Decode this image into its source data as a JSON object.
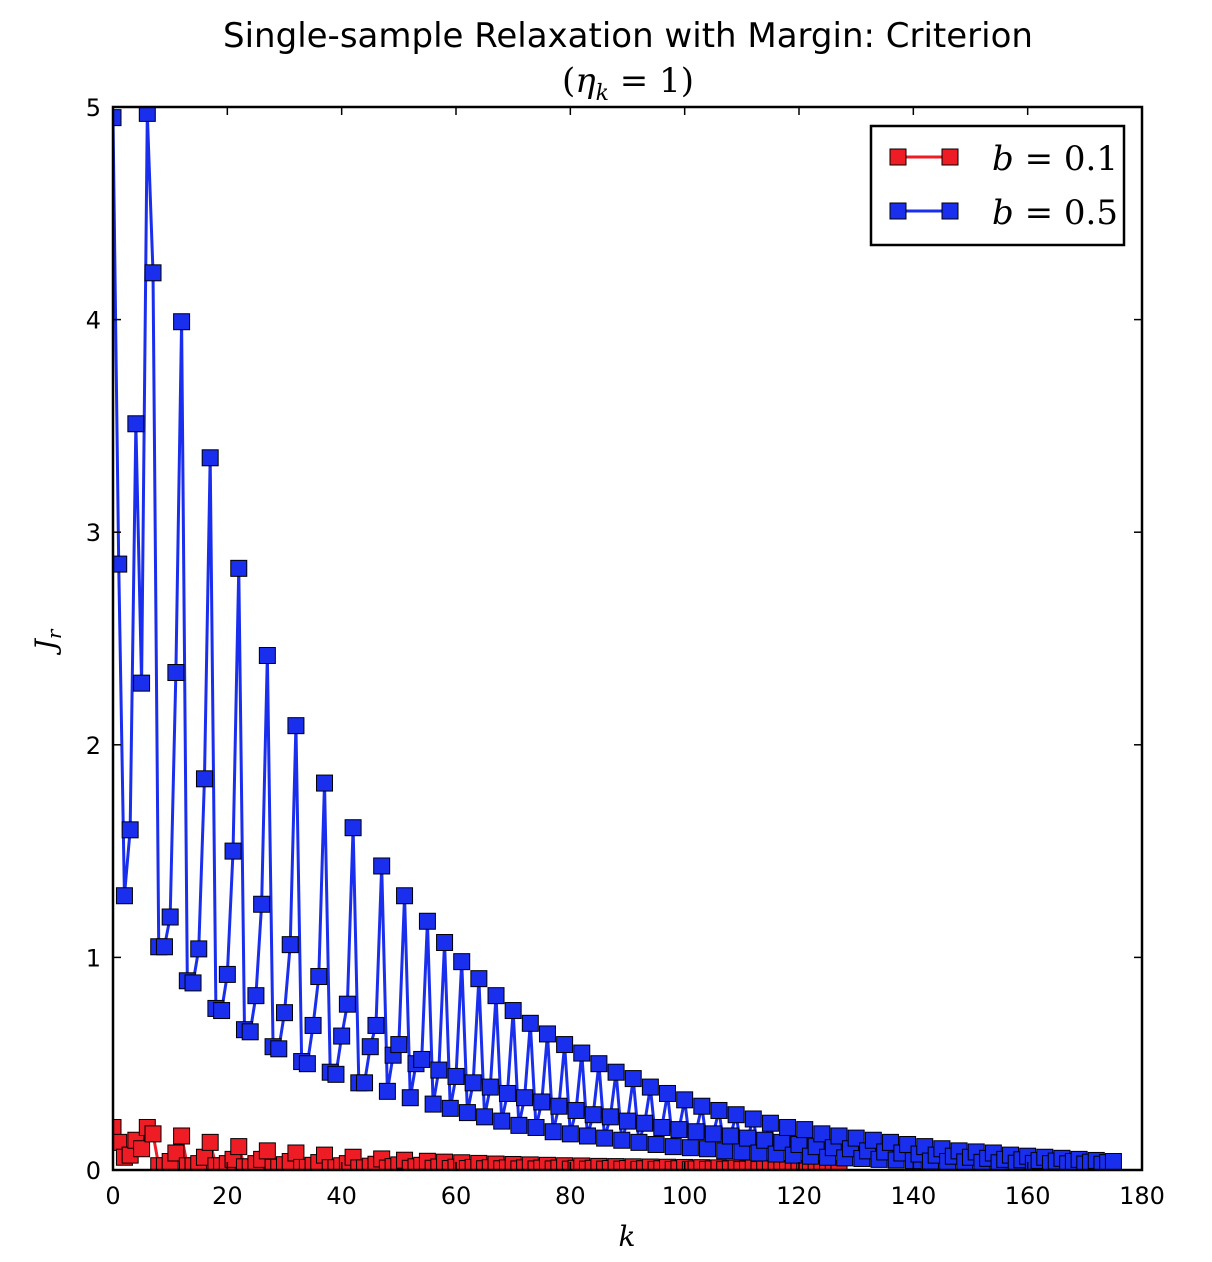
{
  "chart_data": {
    "type": "line",
    "title": "Single-sample Relaxation with Margin: Criterion",
    "subtitle": "(η_k = 1)",
    "xlabel": "k",
    "ylabel": "J_r",
    "xlim": [
      0,
      180
    ],
    "ylim": [
      0,
      5
    ],
    "xticks": [
      0,
      20,
      40,
      60,
      80,
      100,
      120,
      140,
      160,
      180
    ],
    "yticks": [
      0,
      1,
      2,
      3,
      4,
      5
    ],
    "grid": false,
    "legend_position": "top-right",
    "marker": "square",
    "series": [
      {
        "name": "b = 0.1",
        "label_b": "b",
        "label_val": "0.1",
        "color": "#ee1c24",
        "x_start": 0,
        "values": [
          0.2,
          0.13,
          0.06,
          0.07,
          0.14,
          0.1,
          0.2,
          0.17,
          0.02,
          0.02,
          0.04,
          0.08,
          0.16,
          0.02,
          0.02,
          0.03,
          0.06,
          0.13,
          0.02,
          0.02,
          0.03,
          0.05,
          0.11,
          0.015,
          0.015,
          0.03,
          0.05,
          0.09,
          0.013,
          0.013,
          0.025,
          0.04,
          0.08,
          0.012,
          0.012,
          0.022,
          0.035,
          0.07,
          0.011,
          0.011,
          0.02,
          0.03,
          0.06,
          0.01,
          0.01,
          0.018,
          0.027,
          0.052,
          0.009,
          0.016,
          0.024,
          0.046,
          0.008,
          0.015,
          0.022,
          0.041,
          0.008,
          0.014,
          0.037,
          0.007,
          0.013,
          0.034,
          0.007,
          0.012,
          0.031,
          0.006,
          0.011,
          0.028,
          0.006,
          0.01,
          0.026,
          0.005,
          0.01,
          0.024,
          0.005,
          0.009,
          0.022,
          0.005,
          0.009,
          0.02,
          0.004,
          0.008,
          0.019,
          0.004,
          0.008,
          0.017,
          0.004,
          0.007,
          0.016,
          0.004,
          0.007,
          0.015,
          0.003,
          0.006,
          0.014,
          0.003,
          0.006,
          0.013,
          0.003,
          0.006,
          0.012,
          0.003,
          0.005,
          0.011,
          0.003,
          0.005,
          0.01,
          0.002,
          0.005,
          0.009,
          0.002,
          0.004,
          0.009,
          0.002,
          0.004,
          0.008,
          0.002,
          0.004,
          0.007,
          0.002,
          0.004,
          0.007,
          0.002,
          0.003,
          0.006,
          0.002,
          0.003,
          0.006
        ]
      },
      {
        "name": "b = 0.5",
        "label_b": "b",
        "label_val": "0.5",
        "color": "#1a2eee",
        "x_start": 0,
        "values": [
          4.95,
          2.85,
          1.29,
          1.6,
          3.51,
          2.29,
          4.97,
          4.22,
          1.05,
          1.05,
          1.19,
          2.34,
          3.99,
          0.89,
          0.88,
          1.04,
          1.84,
          3.35,
          0.76,
          0.75,
          0.92,
          1.5,
          2.83,
          0.66,
          0.65,
          0.82,
          1.25,
          2.42,
          0.58,
          0.57,
          0.74,
          1.06,
          2.09,
          0.51,
          0.5,
          0.68,
          0.91,
          1.82,
          0.46,
          0.45,
          0.63,
          0.78,
          1.61,
          0.41,
          0.41,
          0.58,
          0.68,
          1.43,
          0.37,
          0.54,
          0.59,
          1.29,
          0.34,
          0.5,
          0.52,
          1.17,
          0.31,
          0.47,
          1.07,
          0.29,
          0.44,
          0.98,
          0.27,
          0.41,
          0.9,
          0.25,
          0.39,
          0.82,
          0.23,
          0.36,
          0.75,
          0.21,
          0.34,
          0.69,
          0.2,
          0.32,
          0.64,
          0.18,
          0.3,
          0.59,
          0.17,
          0.28,
          0.55,
          0.16,
          0.26,
          0.5,
          0.15,
          0.25,
          0.46,
          0.14,
          0.23,
          0.43,
          0.13,
          0.22,
          0.39,
          0.12,
          0.2,
          0.36,
          0.11,
          0.19,
          0.33,
          0.105,
          0.18,
          0.3,
          0.1,
          0.17,
          0.28,
          0.09,
          0.16,
          0.26,
          0.085,
          0.15,
          0.24,
          0.08,
          0.14,
          0.22,
          0.075,
          0.13,
          0.2,
          0.07,
          0.12,
          0.19,
          0.065,
          0.11,
          0.17,
          0.06,
          0.105,
          0.16,
          0.057,
          0.1,
          0.15,
          0.054,
          0.09,
          0.14,
          0.05,
          0.085,
          0.13,
          0.047,
          0.08,
          0.12,
          0.044,
          0.075,
          0.11,
          0.042,
          0.07,
          0.1,
          0.04,
          0.065,
          0.09,
          0.038,
          0.06,
          0.085,
          0.036,
          0.055,
          0.08,
          0.034,
          0.05,
          0.07,
          0.032,
          0.048,
          0.065,
          0.031,
          0.045,
          0.06,
          0.03,
          0.042,
          0.055,
          0.029,
          0.04,
          0.05,
          0.028,
          0.037,
          0.045,
          0.027,
          0.035,
          0.04
        ]
      }
    ]
  }
}
